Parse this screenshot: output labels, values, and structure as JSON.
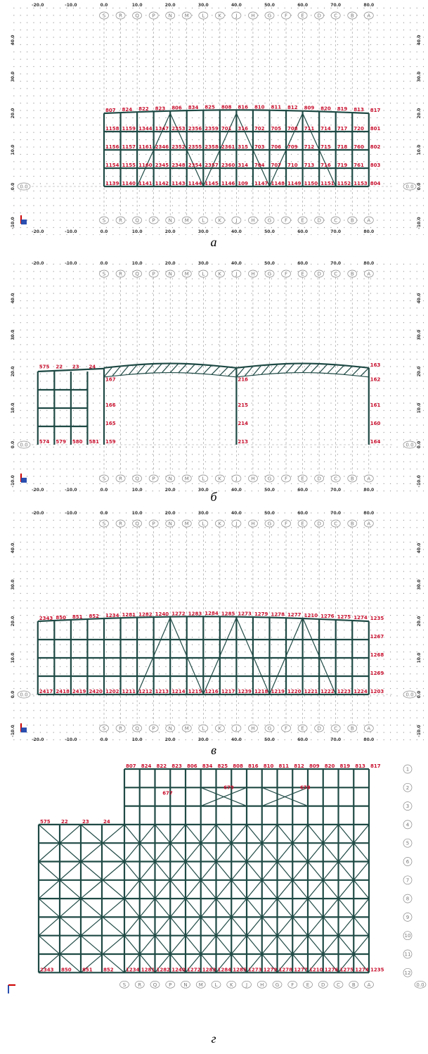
{
  "x_ticks": [
    "-20.0",
    "-10.0",
    "0.0",
    "10.0",
    "20.0",
    "30.0",
    "40.0",
    "50.0",
    "60.0",
    "70.0",
    "80.0"
  ],
  "y_ticks": [
    "-10.0",
    "0.0",
    "10.0",
    "20.0",
    "30.0",
    "40.0"
  ],
  "grid_labels": [
    "S",
    "R",
    "Q",
    "P",
    "N",
    "M",
    "L",
    "K",
    "J",
    "H",
    "G",
    "F",
    "E",
    "D",
    "C",
    "B",
    "A"
  ],
  "origin_label": "0.0",
  "panel_a": {
    "caption": "а",
    "rows": [
      [
        "807",
        "824",
        "822",
        "823",
        "806",
        "834",
        "825",
        "808",
        "816",
        "810",
        "811",
        "812",
        "809",
        "820",
        "819",
        "813",
        "817"
      ],
      [
        "1158",
        "1159",
        "1344",
        "1347",
        "2353",
        "2356",
        "2359",
        "701",
        "316",
        "702",
        "705",
        "708",
        "711",
        "714",
        "717",
        "720",
        "801"
      ],
      [
        "1156",
        "1157",
        "1161",
        "2346",
        "2352",
        "2355",
        "2358",
        "2361",
        "315",
        "703",
        "706",
        "709",
        "712",
        "715",
        "718",
        "760",
        "802"
      ],
      [
        "1154",
        "1155",
        "1160",
        "2345",
        "2348",
        "2354",
        "2357",
        "2360",
        "314",
        "704",
        "707",
        "710",
        "713",
        "716",
        "719",
        "761",
        "803"
      ],
      [
        "1139",
        "1140",
        "1141",
        "1142",
        "1143",
        "1144",
        "1145",
        "1146",
        "109",
        "1147",
        "1148",
        "1149",
        "1150",
        "1151",
        "1152",
        "1153",
        "804"
      ]
    ]
  },
  "panel_b": {
    "caption": "б",
    "annex_top": [
      "575",
      "22",
      "23",
      "24"
    ],
    "annex_bottom": [
      "574",
      "579",
      "580",
      "581"
    ],
    "col_left": [
      "167",
      "166",
      "165",
      "159"
    ],
    "col_mid": [
      "216",
      "215",
      "214",
      "213"
    ],
    "col_right": [
      "163",
      "162",
      "161",
      "160",
      "164"
    ]
  },
  "panel_c": {
    "caption": "в",
    "top": [
      "2343",
      "850",
      "851",
      "852",
      "1234",
      "1281",
      "1282",
      "1240",
      "1272",
      "1283",
      "1284",
      "1285",
      "1273",
      "1279",
      "1278",
      "1277",
      "1210",
      "1276",
      "1275",
      "1274",
      "1235"
    ],
    "right": [
      "1267",
      "1268",
      "1269"
    ],
    "bottom": [
      "2417",
      "2418",
      "2419",
      "2420",
      "1202",
      "1211",
      "1212",
      "1213",
      "1214",
      "1215",
      "1216",
      "1217",
      "1239",
      "1218",
      "1219",
      "1220",
      "1221",
      "1222",
      "1223",
      "1224",
      "1203"
    ]
  },
  "panel_d": {
    "caption": "г",
    "row_labels": [
      "1",
      "2",
      "3",
      "4",
      "5",
      "6",
      "7",
      "8",
      "9",
      "10",
      "11",
      "12"
    ],
    "top": [
      "807",
      "824",
      "822",
      "823",
      "806",
      "834",
      "825",
      "808",
      "816",
      "810",
      "811",
      "812",
      "809",
      "820",
      "819",
      "813",
      "817"
    ],
    "annex_top": [
      "575",
      "22",
      "23",
      "24"
    ],
    "bottom": [
      "2343",
      "850",
      "851",
      "852",
      "1234",
      "1281",
      "1282",
      "1240",
      "1272",
      "1283",
      "1284",
      "1285",
      "1273",
      "1279",
      "1278",
      "1277",
      "1210",
      "1276",
      "1275",
      "1274",
      "1235"
    ],
    "tags": [
      "677",
      "679",
      "678"
    ]
  }
}
